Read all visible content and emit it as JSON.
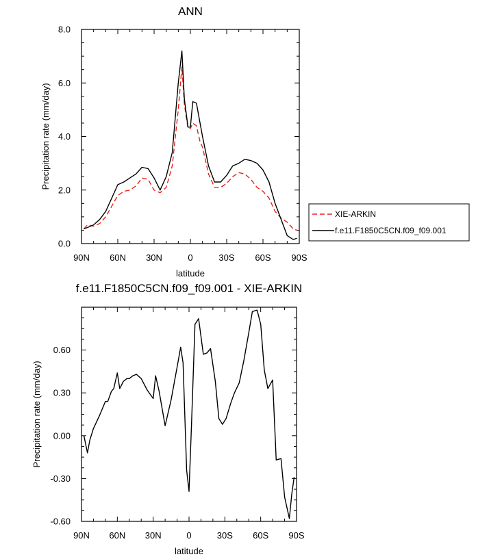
{
  "chart_data": [
    {
      "type": "line",
      "title": "ANN",
      "xlabel": "latitude",
      "ylabel": "Precipitation rate (mm/day)",
      "xlim": [
        90,
        -90
      ],
      "ylim": [
        0,
        8
      ],
      "yticks": [
        0,
        2,
        4,
        6,
        8
      ],
      "ytick_labels": [
        "0.0",
        "2.0",
        "4.0",
        "6.0",
        "8.0"
      ],
      "xticks": [
        90,
        60,
        30,
        0,
        -30,
        -60,
        -90
      ],
      "xtick_labels": [
        "90N",
        "60N",
        "30N",
        "0",
        "30S",
        "60S",
        "90S"
      ],
      "legend": "outside-right",
      "grid": false,
      "series": [
        {
          "name": "XIE-ARKIN",
          "color": "#e8211a",
          "dash": "dashed",
          "x": [
            88,
            85,
            80,
            75,
            70,
            65,
            60,
            55,
            50,
            45,
            40,
            35,
            30,
            25,
            20,
            15,
            10,
            7,
            5,
            2,
            0,
            -2,
            -5,
            -8,
            -10,
            -15,
            -20,
            -25,
            -30,
            -35,
            -40,
            -45,
            -50,
            -55,
            -60,
            -65,
            -70,
            -75,
            -80,
            -85,
            -88
          ],
          "y": [
            0.55,
            0.7,
            0.65,
            0.75,
            1.0,
            1.4,
            1.8,
            1.95,
            2.0,
            2.15,
            2.45,
            2.4,
            2.0,
            1.9,
            2.1,
            2.9,
            5.0,
            6.6,
            5.2,
            4.3,
            4.3,
            4.5,
            4.4,
            3.8,
            3.6,
            2.6,
            2.1,
            2.1,
            2.25,
            2.5,
            2.65,
            2.6,
            2.4,
            2.1,
            1.95,
            1.7,
            1.2,
            0.95,
            0.8,
            0.55,
            0.5
          ]
        },
        {
          "name": "f.e11.F1850C5CN.f09_f09.001",
          "color": "#000000",
          "dash": "solid",
          "x": [
            88,
            85,
            80,
            75,
            70,
            65,
            60,
            55,
            50,
            45,
            40,
            35,
            30,
            25,
            20,
            15,
            10,
            7,
            5,
            2,
            0,
            -2,
            -5,
            -8,
            -10,
            -15,
            -20,
            -25,
            -30,
            -35,
            -40,
            -45,
            -50,
            -55,
            -60,
            -65,
            -70,
            -75,
            -80,
            -85,
            -88
          ],
          "y": [
            0.55,
            0.6,
            0.7,
            0.9,
            1.2,
            1.7,
            2.2,
            2.3,
            2.45,
            2.6,
            2.85,
            2.8,
            2.45,
            2.0,
            2.5,
            3.4,
            6.0,
            7.2,
            5.4,
            4.35,
            4.35,
            5.3,
            5.25,
            4.5,
            4.0,
            2.9,
            2.3,
            2.3,
            2.55,
            2.9,
            3.0,
            3.15,
            3.1,
            3.0,
            2.75,
            2.3,
            1.5,
            0.9,
            0.3,
            0.15,
            0.2
          ]
        }
      ]
    },
    {
      "type": "line",
      "title": "f.e11.F1850C5CN.f09_f09.001 - XIE-ARKIN",
      "xlabel": "latitude",
      "ylabel": "Precipitation rate (mm/day)",
      "xlim": [
        90,
        -90
      ],
      "ylim": [
        -0.6,
        0.9
      ],
      "yticks": [
        -0.6,
        -0.3,
        0,
        0.3,
        0.6
      ],
      "ytick_labels": [
        "-0.60",
        "-0.30",
        "0.00",
        "0.30",
        "0.60"
      ],
      "xticks": [
        90,
        60,
        30,
        0,
        -30,
        -60,
        -90
      ],
      "xtick_labels": [
        "90N",
        "60N",
        "30N",
        "0",
        "30S",
        "60S",
        "90S"
      ],
      "grid": false,
      "series": [
        {
          "color": "#000000",
          "dash": "solid",
          "x": [
            88,
            85,
            83,
            80,
            75,
            70,
            68,
            65,
            63,
            60,
            58,
            55,
            52,
            50,
            47,
            44,
            40,
            35,
            30,
            28,
            25,
            20,
            15,
            10,
            7,
            5,
            2,
            0,
            -2,
            -5,
            -8,
            -12,
            -15,
            -18,
            -22,
            -25,
            -28,
            -31,
            -35,
            -38,
            -42,
            -46,
            -50,
            -53,
            -57,
            -60,
            -63,
            -66,
            -70,
            -73,
            -77,
            -80,
            -84,
            -86,
            -88
          ],
          "y": [
            0.0,
            -0.12,
            -0.03,
            0.05,
            0.14,
            0.24,
            0.24,
            0.31,
            0.33,
            0.44,
            0.33,
            0.38,
            0.4,
            0.4,
            0.42,
            0.43,
            0.4,
            0.32,
            0.26,
            0.42,
            0.31,
            0.07,
            0.25,
            0.48,
            0.62,
            0.51,
            -0.24,
            -0.39,
            0.06,
            0.78,
            0.82,
            0.57,
            0.58,
            0.61,
            0.38,
            0.12,
            0.08,
            0.12,
            0.23,
            0.3,
            0.37,
            0.53,
            0.72,
            0.87,
            0.88,
            0.78,
            0.46,
            0.33,
            0.39,
            -0.17,
            -0.16,
            -0.43,
            -0.58,
            -0.41,
            -0.29
          ]
        }
      ]
    }
  ]
}
